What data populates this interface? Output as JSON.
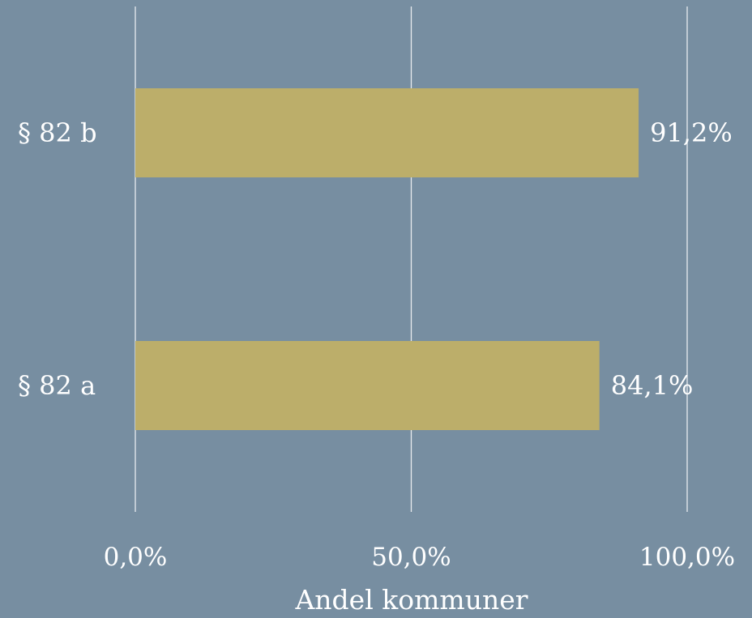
{
  "chart_data": {
    "type": "bar",
    "orientation": "horizontal",
    "categories": [
      "§ 82 b",
      "§ 82 a"
    ],
    "values": [
      91.2,
      84.1
    ],
    "value_labels": [
      "91,2%",
      "84,1%"
    ],
    "xlim": [
      0,
      100
    ],
    "x_ticks": [
      0,
      50,
      100
    ],
    "x_tick_labels": [
      "0,0%",
      "50,0%",
      "100,0%"
    ],
    "xlabel": "Andel kommuner",
    "ylabel": "",
    "title": "",
    "grid": "vertical",
    "legend": "none",
    "colors": {
      "background": "#778ea1",
      "bar": "#bcae6a",
      "grid": "#e8ecef",
      "text": "#ffffff"
    }
  }
}
